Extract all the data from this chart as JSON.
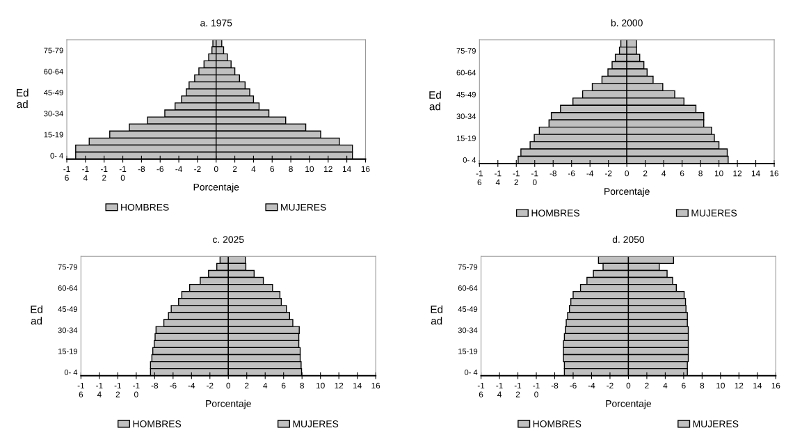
{
  "chart_data": [
    {
      "type": "bar",
      "orientation": "horizontal",
      "title": "a. 1975",
      "stacked": true,
      "xlabel": "Porcentaje",
      "ylabel": "Ed\nad",
      "legend": "bottom",
      "grid": false,
      "categories": [
        null,
        "75-79",
        null,
        null,
        "60-64",
        null,
        null,
        "45-49",
        null,
        null,
        "30-34",
        null,
        null,
        "15-19",
        null,
        null,
        "0- 4"
      ],
      "series": [
        {
          "name": "HOMBRES",
          "color": "#c0c0c0",
          "values": [
            -0.35,
            -0.45,
            -0.8,
            -1.3,
            -1.85,
            -2.3,
            -2.9,
            -3.2,
            -3.7,
            -4.4,
            -5.5,
            -7.35,
            -9.3,
            -11.4,
            -13.6,
            -15.05,
            -15.05
          ]
        },
        {
          "name": "MUJERES",
          "color": "#c0c0c0",
          "values": [
            0.6,
            0.8,
            1.2,
            1.6,
            2.0,
            2.5,
            3.1,
            3.6,
            4.0,
            4.6,
            5.65,
            7.45,
            9.6,
            11.2,
            13.2,
            14.6,
            14.6
          ]
        }
      ],
      "xlim": [
        -16,
        16
      ],
      "xticks": [
        {
          "value": -16,
          "label": "-1\n6"
        },
        {
          "value": -14,
          "label": "-1\n4"
        },
        {
          "value": -12,
          "label": "-1\n2"
        },
        {
          "value": -10,
          "label": "-1\n0"
        },
        -8,
        -6,
        -4,
        -2,
        0,
        2,
        4,
        6,
        8,
        10,
        12,
        14,
        16
      ]
    },
    {
      "type": "bar",
      "orientation": "horizontal",
      "title": "b. 2000",
      "stacked": true,
      "xlabel": "Porcentaje",
      "ylabel": "Ed\nad",
      "legend": "bottom",
      "grid": false,
      "categories": [
        null,
        "75-79",
        null,
        null,
        "60-64",
        null,
        null,
        "45-49",
        null,
        null,
        "30-34",
        null,
        null,
        "15-19",
        null,
        null,
        "0- 4"
      ],
      "series": [
        {
          "name": "HOMBRES",
          "color": "#c0c0c0",
          "values": [
            -0.65,
            -0.8,
            -1.25,
            -1.6,
            -2.05,
            -2.7,
            -3.75,
            -4.8,
            -5.85,
            -7.2,
            -8.2,
            -8.45,
            -9.5,
            -10.05,
            -10.5,
            -11.5,
            -11.8
          ]
        },
        {
          "name": "MUJERES",
          "color": "#c0c0c0",
          "values": [
            1.05,
            1.05,
            1.4,
            1.85,
            2.2,
            2.85,
            3.9,
            5.2,
            6.2,
            7.5,
            8.35,
            8.35,
            9.2,
            9.5,
            10.0,
            10.9,
            11.0
          ]
        }
      ],
      "xlim": [
        -16,
        16
      ],
      "xticks": [
        {
          "value": -16,
          "label": "-1\n6"
        },
        {
          "value": -14,
          "label": "-1\n4"
        },
        {
          "value": -12,
          "label": "-1\n2"
        },
        {
          "value": -10,
          "label": "-1\n0"
        },
        -8,
        -6,
        -4,
        -2,
        0,
        2,
        4,
        6,
        8,
        10,
        12,
        14,
        16
      ]
    },
    {
      "type": "bar",
      "orientation": "horizontal",
      "title": "c. 2025",
      "stacked": true,
      "xlabel": "Porcentaje",
      "ylabel": "Ed\nad",
      "legend": "bottom",
      "grid": false,
      "categories": [
        null,
        "75-79",
        null,
        null,
        "60-64",
        null,
        null,
        "45-49",
        null,
        null,
        "30-34",
        null,
        null,
        "15-19",
        null,
        null,
        "0- 4"
      ],
      "series": [
        {
          "name": "HOMBRES",
          "color": "#c0c0c0",
          "values": [
            -0.9,
            -1.25,
            -2.15,
            -3.05,
            -4.2,
            -5.05,
            -5.4,
            -6.2,
            -6.5,
            -7.0,
            -7.85,
            -7.95,
            -8.05,
            -8.2,
            -8.3,
            -8.45,
            -8.45
          ]
        },
        {
          "name": "MUJERES",
          "color": "#c0c0c0",
          "values": [
            1.85,
            1.9,
            2.8,
            3.8,
            4.8,
            5.6,
            5.75,
            6.3,
            6.65,
            7.0,
            7.7,
            7.65,
            7.65,
            7.8,
            7.8,
            7.9,
            7.95
          ]
        }
      ],
      "xlim": [
        -16,
        16
      ],
      "xticks": [
        {
          "value": -16,
          "label": "-1\n6"
        },
        {
          "value": -14,
          "label": "-1\n4"
        },
        {
          "value": -12,
          "label": "-1\n2"
        },
        {
          "value": -10,
          "label": "-1\n0"
        },
        -8,
        -6,
        -4,
        -2,
        0,
        2,
        4,
        6,
        8,
        10,
        12,
        14,
        16
      ]
    },
    {
      "type": "bar",
      "orientation": "horizontal",
      "title": "d. 2050",
      "stacked": true,
      "xlabel": "Porcentaje",
      "ylabel": "Ed\nad",
      "legend": "bottom",
      "grid": false,
      "categories": [
        null,
        "75-79",
        null,
        null,
        "60-64",
        null,
        null,
        "45-49",
        null,
        null,
        "30-34",
        null,
        null,
        "15-19",
        null,
        null,
        "0- 4"
      ],
      "series": [
        {
          "name": "HOMBRES",
          "color": "#c0c0c0",
          "values": [
            -3.25,
            -2.75,
            -3.8,
            -4.5,
            -5.2,
            -6.0,
            -6.25,
            -6.4,
            -6.6,
            -6.75,
            -6.85,
            -6.95,
            -7.05,
            -7.05,
            -7.05,
            -6.95,
            -6.95
          ]
        },
        {
          "name": "MUJERES",
          "color": "#c0c0c0",
          "values": [
            4.9,
            3.35,
            4.2,
            4.8,
            5.2,
            6.05,
            6.2,
            6.25,
            6.4,
            6.4,
            6.5,
            6.5,
            6.5,
            6.5,
            6.5,
            6.4,
            6.4
          ]
        }
      ],
      "xlim": [
        -16,
        16
      ],
      "xticks": [
        {
          "value": -16,
          "label": "-1\n6"
        },
        {
          "value": -14,
          "label": "-1\n4"
        },
        {
          "value": -12,
          "label": "-1\n2"
        },
        {
          "value": -10,
          "label": "-1\n0"
        },
        -8,
        -6,
        -4,
        -2,
        0,
        2,
        4,
        6,
        8,
        10,
        12,
        14,
        16
      ]
    }
  ]
}
